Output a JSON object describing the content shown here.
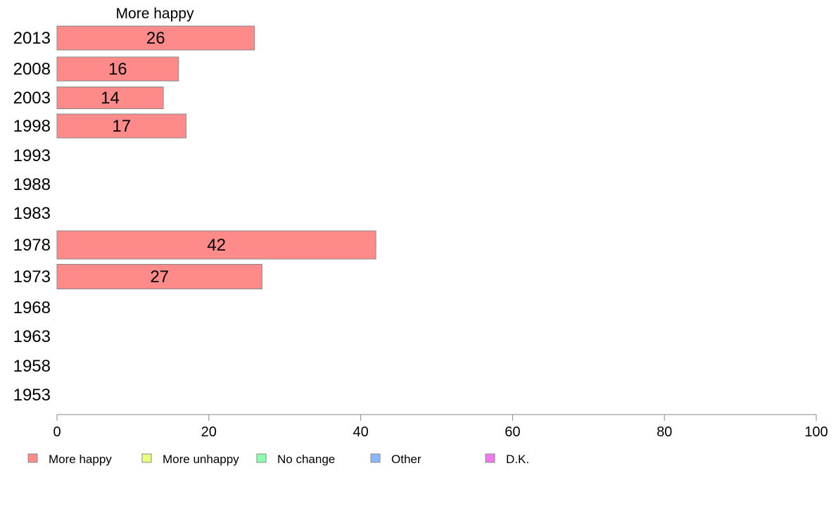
{
  "chart_data": {
    "type": "bar",
    "orientation": "horizontal",
    "title": "More happy",
    "categories": [
      "2013",
      "2008",
      "2003",
      "1998",
      "1993",
      "1988",
      "1983",
      "1978",
      "1973",
      "1968",
      "1963",
      "1958",
      "1953"
    ],
    "series": [
      {
        "name": "More happy",
        "color": "#ff8a8a",
        "values": [
          26,
          16,
          14,
          17,
          null,
          null,
          null,
          42,
          27,
          null,
          null,
          null,
          null
        ]
      }
    ],
    "xlim": [
      0,
      100
    ],
    "xticks": [
      "0",
      "20",
      "40",
      "60",
      "80",
      "100"
    ],
    "grid": false,
    "legend": {
      "placement": "bottom",
      "entries": [
        {
          "name": "More happy",
          "color": "#ff8a8a"
        },
        {
          "name": "More unhappy",
          "color": "#eaff7a"
        },
        {
          "name": "No change",
          "color": "#8affb0"
        },
        {
          "name": "Other",
          "color": "#8ab8ff"
        },
        {
          "name": "D.K.",
          "color": "#ef7aef"
        }
      ]
    }
  }
}
